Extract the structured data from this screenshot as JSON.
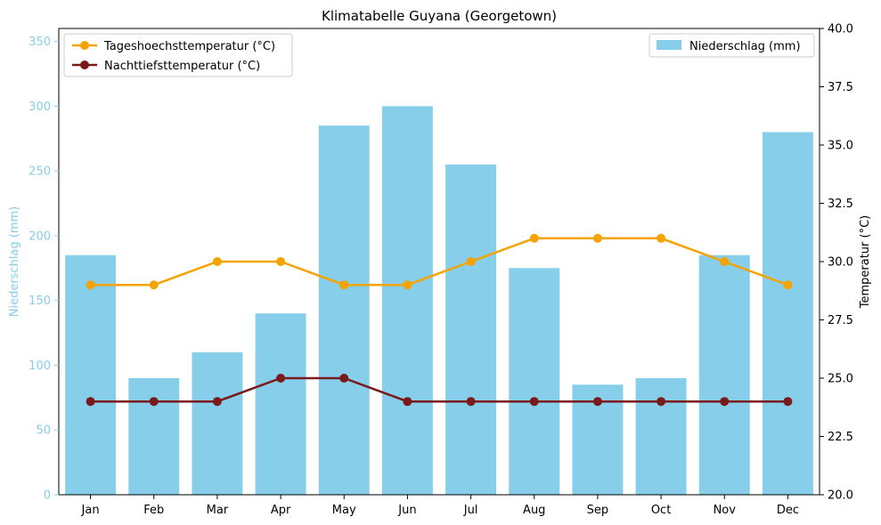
{
  "chart_data": {
    "type": "bar",
    "title": "Klimatabelle Guyana (Georgetown)",
    "categories": [
      "Jan",
      "Feb",
      "Mar",
      "Apr",
      "May",
      "Jun",
      "Jul",
      "Aug",
      "Sep",
      "Oct",
      "Nov",
      "Dec"
    ],
    "left_axis": {
      "label": "Niederschlag (mm)",
      "range": [
        0,
        360
      ],
      "ticks": [
        0,
        50,
        100,
        150,
        200,
        250,
        300,
        350
      ],
      "tick_labels": [
        "0",
        "50",
        "100",
        "150",
        "200",
        "250",
        "300",
        "350"
      ],
      "color": "#87ceeb"
    },
    "right_axis": {
      "label": "Temperatur (°C)",
      "range": [
        20.0,
        40.0
      ],
      "ticks": [
        20.0,
        22.5,
        25.0,
        27.5,
        30.0,
        32.5,
        35.0,
        37.5,
        40.0
      ],
      "tick_labels": [
        "20.0",
        "22.5",
        "25.0",
        "27.5",
        "30.0",
        "32.5",
        "35.0",
        "37.5",
        "40.0"
      ]
    },
    "bar_series": {
      "name": "Niederschlag (mm)",
      "color": "#87ceeb",
      "axis": "left",
      "values": [
        185,
        90,
        110,
        140,
        285,
        300,
        255,
        175,
        85,
        90,
        185,
        280
      ]
    },
    "line_series": [
      {
        "name": "Tageshoechsttemperatur (°C)",
        "color": "#f5a300",
        "axis": "right",
        "values": [
          29,
          29,
          30,
          30,
          29,
          29,
          30,
          31,
          31,
          31,
          30,
          29
        ]
      },
      {
        "name": "Nachttiefsttemperatur (°C)",
        "color": "#7b1a1c",
        "axis": "right",
        "values": [
          24,
          24,
          24,
          25,
          25,
          24,
          24,
          24,
          24,
          24,
          24,
          24
        ]
      }
    ],
    "legends": {
      "lines_placement": "top-left",
      "bars_placement": "top-right"
    },
    "grid": false
  }
}
